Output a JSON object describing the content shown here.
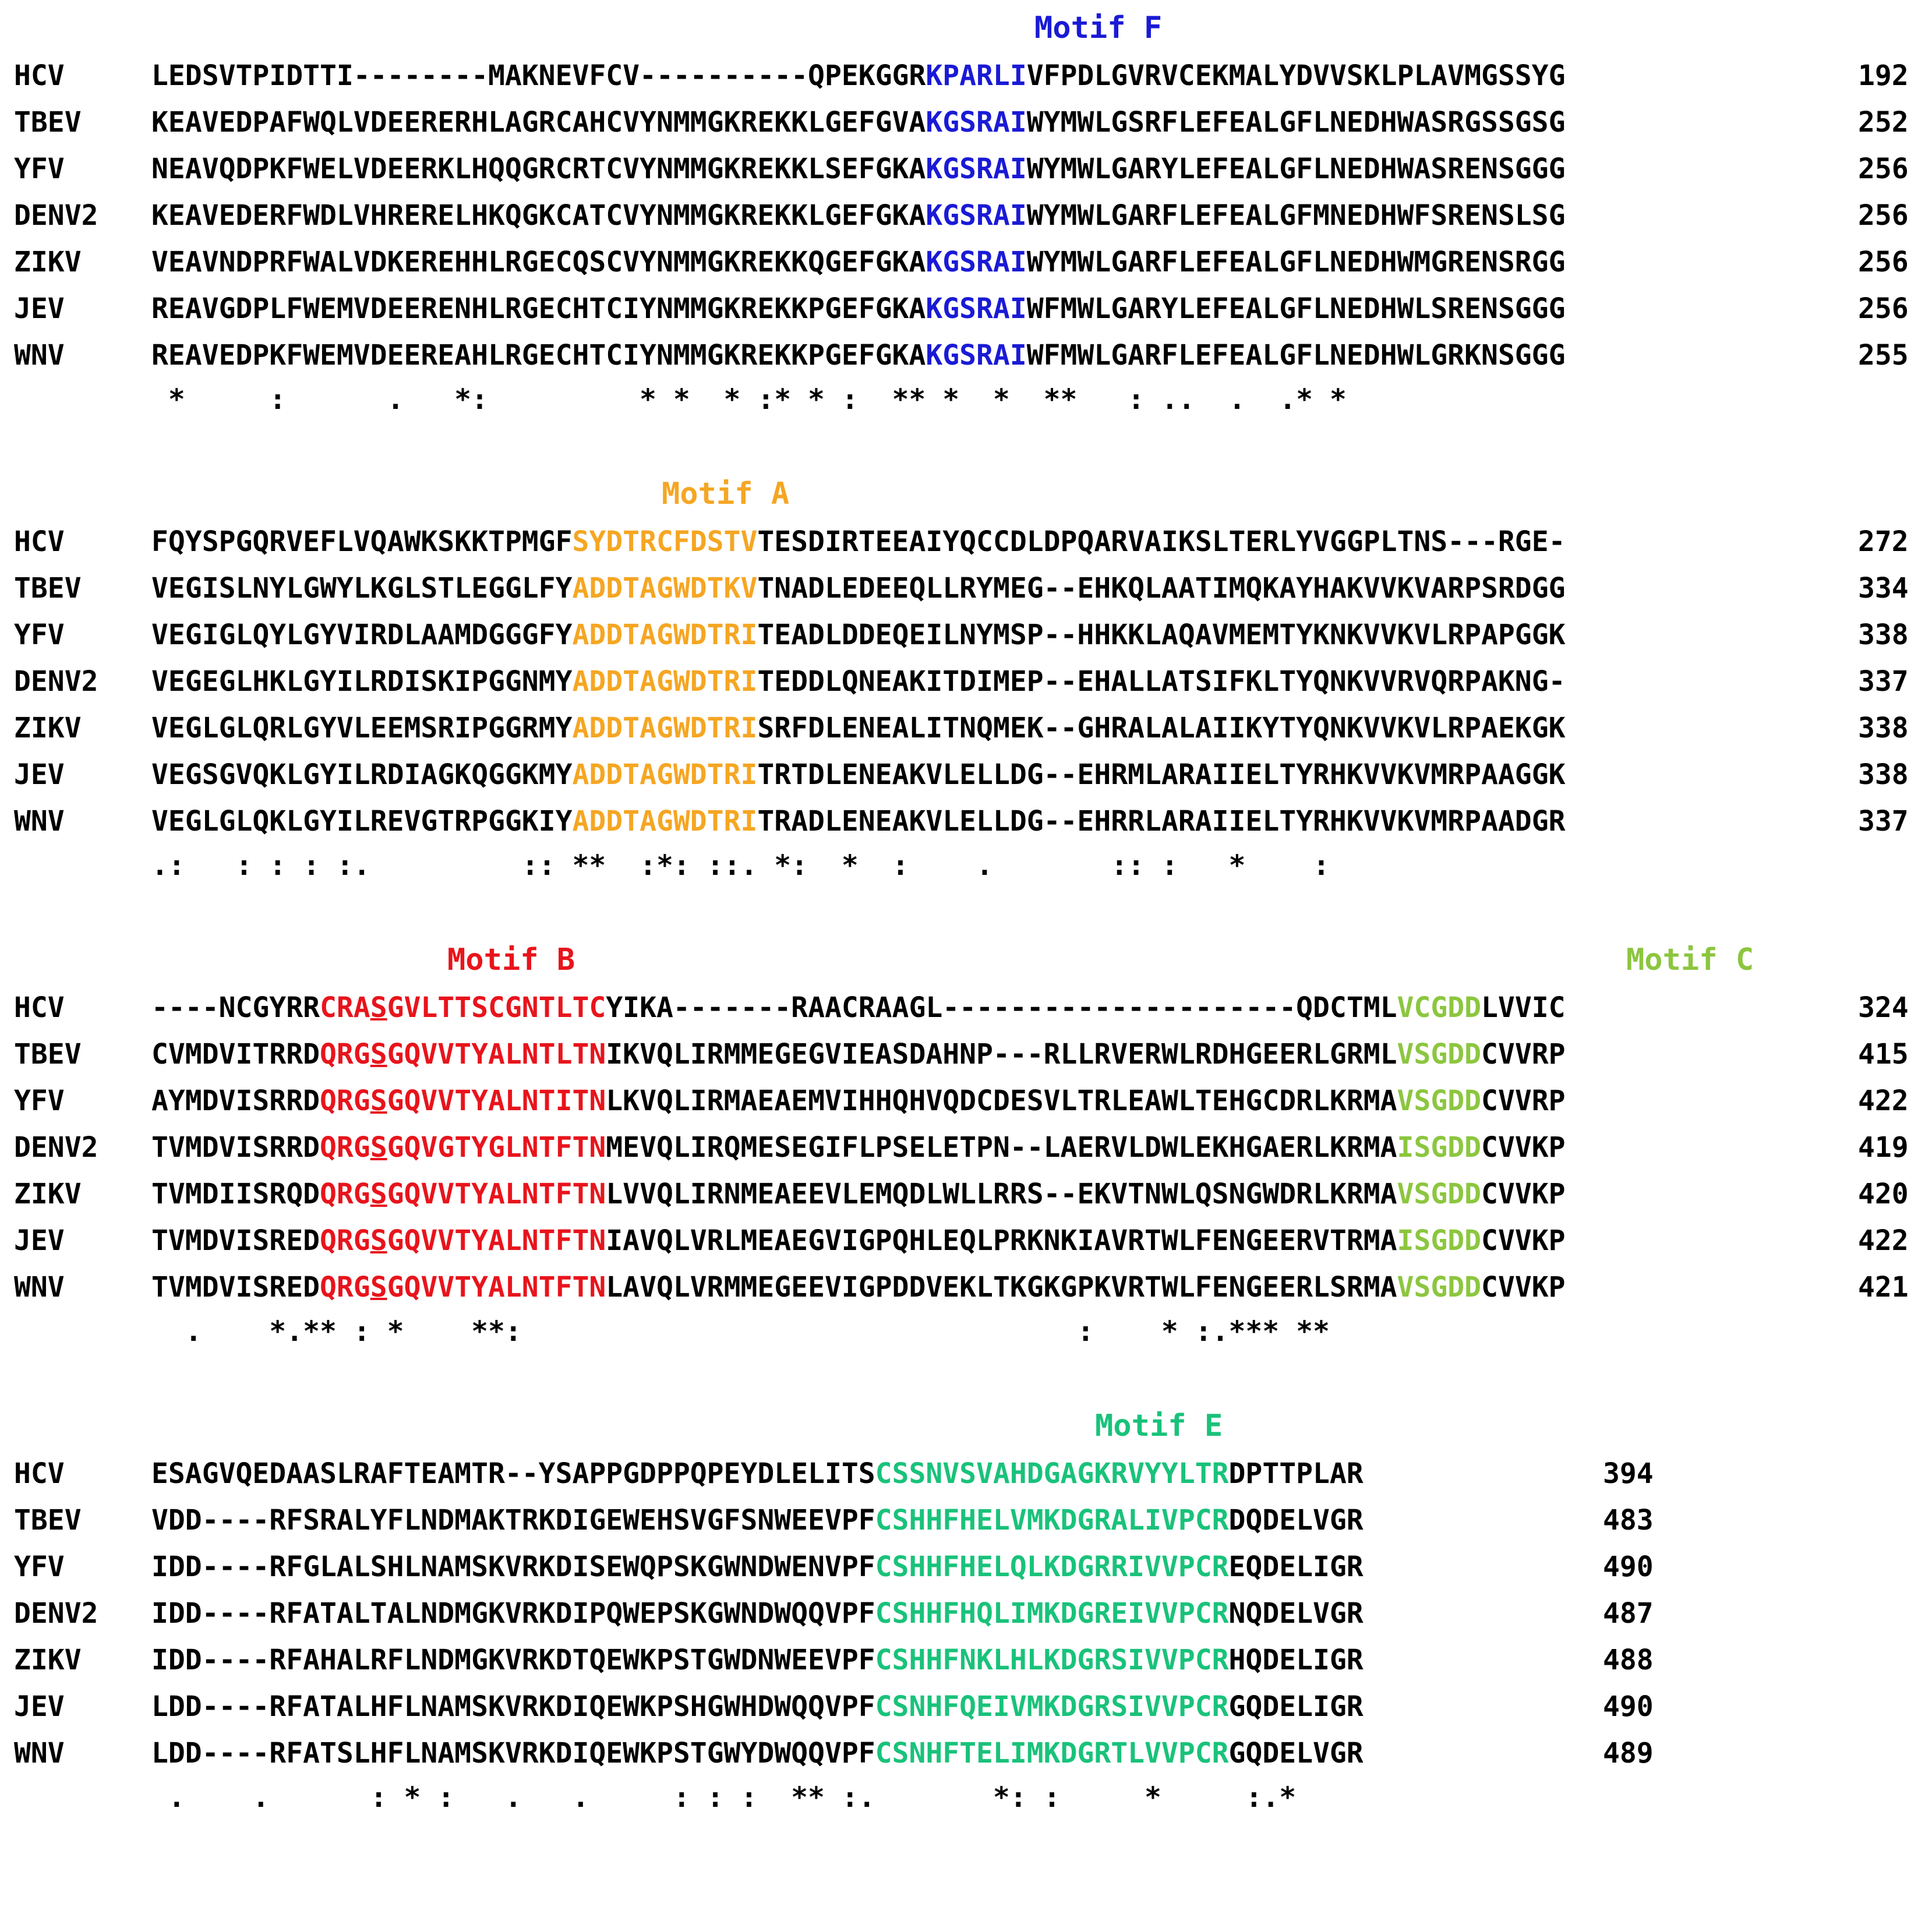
{
  "blocks": [
    {
      "motif": {
        "label": "Motif F",
        "color": "#1a1ad6"
      },
      "rows": [
        {
          "name": "HCV",
          "pre": "LEDSVTPIDTTI--------MAKNEVFCV----------QPEKGGR",
          "hl": "KPARLI",
          "post": "VFPDLGVRVCEKMALYDVVSKLPLAVMGSSYG",
          "num": "192"
        },
        {
          "name": "TBEV",
          "pre": "KEAVEDPAFWQLVDEERERHLAGRCAHCVYNMMGKREKKLGEFGVA",
          "hl": "KGSRAI",
          "post": "WYMWLGSRFLEFEALGFLNEDHWASRGSSGSG",
          "num": "252"
        },
        {
          "name": "YFV",
          "pre": "NEAVQDPKFWELVDEERKLHQQGRCRTCVYNMMGKREKKLSEFGKA",
          "hl": "KGSRAI",
          "post": "WYMWLGARYLEFEALGFLNEDHWASRENSGGG",
          "num": "256"
        },
        {
          "name": "DENV2",
          "pre": "KEAVEDERFWDLVHRERELHKQGKCATCVYNMMGKREKKLGEFGKA",
          "hl": "KGSRAI",
          "post": "WYMWLGARFLEFEALGFMNEDHWFSRENSLSG",
          "num": "256"
        },
        {
          "name": "ZIKV",
          "pre": "VEAVNDPRFWALVDKEREHHLRGECQSCVYNMMGKREKKQGEFGKA",
          "hl": "KGSRAI",
          "post": "WYMWLGARFLEFEALGFLNEDHWMGRENSRGG",
          "num": "256"
        },
        {
          "name": "JEV",
          "pre": "REAVGDPLFWEMVDEERENHLRGECHTCIYNMMGKREKKPGEFGKA",
          "hl": "KGSRAI",
          "post": "WFMWLGARYLEFEALGFLNEDHWLSRENSGGG",
          "num": "256"
        },
        {
          "name": "WNV",
          "pre": "REAVEDPKFWEMVDEEREAHLRGECHTCIYNMMGKREKKPGEFGKA",
          "hl": "KGSRAI",
          "post": "WFMWLGARFLEFEALGFLNEDHWLGRKNSGGG",
          "num": "255"
        }
      ],
      "consensus": " *     :      .   *:         * *  * :* * :  ** *  *  **   : ..  .  .* *"
    },
    {
      "motif": {
        "label": "Motif A",
        "color": "#f5a623"
      },
      "rows": [
        {
          "name": "HCV",
          "pre": "FQYSPGQRVEFLVQAWKSKKTPMGF",
          "hl": "SYDTRCFDSTV",
          "post": "TESDIRTEEAIYQCCDLDPQARVAIKSLTERLYVGGPLTNS---RGE-",
          "num": "272"
        },
        {
          "name": "TBEV",
          "pre": "VEGISLNYLGWYLKGLSTLEGGLFY",
          "hl": "ADDTAGWDTKV",
          "post": "TNADLEDEEQLLRYMEG--EHKQLAATIMQKAYHAKVVKVARPSRDGG",
          "num": "334"
        },
        {
          "name": "YFV",
          "pre": "VEGIGLQYLGYVIRDLAAMDGGGFY",
          "hl": "ADDTAGWDTRI",
          "post": "TEADLDDEQEILNYMSP--HHKKLAQAVMEMTYKNKVVKVLRPAPGGK",
          "num": "338"
        },
        {
          "name": "DENV2",
          "pre": "VEGEGLHKLGYILRDISKIPGGNMY",
          "hl": "ADDTAGWDTRI",
          "post": "TEDDLQNEAKITDIMEP--EHALLATSIFKLTYQNKVVRVQRPAKNG-",
          "num": "337"
        },
        {
          "name": "ZIKV",
          "pre": "VEGLGLQRLGYVLEEMSRIPGGRMY",
          "hl": "ADDTAGWDTRI",
          "post": "SRFDLENEALITNQMEK--GHRALALAIIKYTYQNKVVKVLRPAEKGK",
          "num": "338"
        },
        {
          "name": "JEV",
          "pre": "VEGSGVQKLGYILRDIAGKQGGKMY",
          "hl": "ADDTAGWDTRI",
          "post": "TRTDLENEAKVLELLDG--EHRMLARAIIELTYRHKVVKVMRPAAGGK",
          "num": "338"
        },
        {
          "name": "WNV",
          "pre": "VEGLGLQKLGYILREVGTRPGGKIY",
          "hl": "ADDTAGWDTRI",
          "post": "TRADLENEAKVLELLDG--EHRRLARAIIELTYRHKVVKVMRPAADGR",
          "num": "337"
        }
      ],
      "consensus": ".:   : : : :.         :: **  :*: ::. *:  *  :    .       :: :   *    :"
    },
    {
      "motif": {
        "label": "Motif B",
        "color": "#e8141c"
      },
      "motif2": {
        "label": "Motif C",
        "color": "#8cc63f"
      },
      "rows": [
        {
          "name": "HCV",
          "pre": "----NCGYRR",
          "hlb1": "CRA",
          "hlbs": "S",
          "hlb2": "GVLTTSCGNTLTC",
          "mid": "YIKA-------RAACRAAGL---------------------QDCTML",
          "hlc": "VCGDD",
          "post": "LVVIC",
          "num": "324"
        },
        {
          "name": "TBEV",
          "pre": "CVMDVITRRD",
          "hlb1": "QRG",
          "hlbs": "S",
          "hlb2": "GQVVTYALNTLTN",
          "mid": "IKVQLIRMMEGEGVIEASDAHNP---RLLRVERWLRDHGEERLGRML",
          "hlc": "VSGDD",
          "post": "CVVRP",
          "num": "415"
        },
        {
          "name": "YFV",
          "pre": "AYMDVISRRD",
          "hlb1": "QRG",
          "hlbs": "S",
          "hlb2": "GQVVTYALNTITN",
          "mid": "LKVQLIRMAEAEMVIHHQHVQDCDESVLTRLEAWLTEHGCDRLKRMA",
          "hlc": "VSGDD",
          "post": "CVVRP",
          "num": "422"
        },
        {
          "name": "DENV2",
          "pre": "TVMDVISRRD",
          "hlb1": "QRG",
          "hlbs": "S",
          "hlb2": "GQVGTYGLNTFTN",
          "mid": "MEVQLIRQMESEGIFLPSELETPN--LAERVLDWLEKHGAERLKRMA",
          "hlc": "ISGDD",
          "post": "CVVKP",
          "num": "419"
        },
        {
          "name": "ZIKV",
          "pre": "TVMDIISRQD",
          "hlb1": "QRG",
          "hlbs": "S",
          "hlb2": "GQVVTYALNTFTN",
          "mid": "LVVQLIRNMEAEEVLEMQDLWLLRRS--EKVTNWLQSNGWDRLKRMA",
          "hlc": "VSGDD",
          "post": "CVVKP",
          "num": "420"
        },
        {
          "name": "JEV",
          "pre": "TVMDVISRED",
          "hlb1": "QRG",
          "hlbs": "S",
          "hlb2": "GQVVTYALNTFTN",
          "mid": "IAVQLVRLMEAEGVIGPQHLEQLPRKNKIAVRTWLFENGEERVTRMA",
          "hlc": "ISGDD",
          "post": "CVVKP",
          "num": "422"
        },
        {
          "name": "WNV",
          "pre": "TVMDVISRED",
          "hlb1": "QRG",
          "hlbs": "S",
          "hlb2": "GQVVTYALNTFTN",
          "mid": "LAVQLVRMMEGEEVIGPDDVEKLTKGKGPKVRTWLFENGEERLSRMA",
          "hlc": "VSGDD",
          "post": "CVVKP",
          "num": "421"
        }
      ],
      "consensus": "  .    *.** : *    **:                                 :    * :.*** **"
    },
    {
      "motif": {
        "label": "Motif E",
        "color": "#19c27a"
      },
      "rows": [
        {
          "name": "HCV",
          "pre": "ESAGVQEDAASLRAFTEAMTR--YSAPPGDPPQPEYDLELITS",
          "hl": "CSSNVSVAHDGAGKRVYYLTR",
          "post": "DPTTPLAR",
          "num": "394"
        },
        {
          "name": "TBEV",
          "pre": "VDD----RFSRALYFLNDMAKTRKDIGEWEHSVGFSNWEEVPF",
          "hl": "CSHHFHELVMKDGRALIVPCR",
          "post": "DQDELVGR",
          "num": "483"
        },
        {
          "name": "YFV",
          "pre": "IDD----RFGLALSHLNAMSKVRKDISEWQPSKGWNDWENVPF",
          "hl": "CSHHFHELQLKDGRRIVVPCR",
          "post": "EQDELIGR",
          "num": "490"
        },
        {
          "name": "DENV2",
          "pre": "IDD----RFATALTALNDMGKVRKDIPQWEPSKGWNDWQQVPF",
          "hl": "CSHHFHQLIMKDGREIVVPCR",
          "post": "NQDELVGR",
          "num": "487"
        },
        {
          "name": "ZIKV",
          "pre": "IDD----RFAHALRFLNDMGKVRKDTQEWKPSTGWDNWEEVPF",
          "hl": "CSHHFNKLHLKDGRSIVVPCR",
          "post": "HQDELIGR",
          "num": "488"
        },
        {
          "name": "JEV",
          "pre": "LDD----RFATALHFLNAMSKVRKDIQEWKPSHGWHDWQQVPF",
          "hl": "CSNHFQEIVMKDGRSIVVPCR",
          "post": "GQDELIGR",
          "num": "490"
        },
        {
          "name": "WNV",
          "pre": "LDD----RFATSLHFLNAMSKVRKDIQEWKPSTGWYDWQQVPF",
          "hl": "CSNHFTELIMKDGRTLVVPCR",
          "post": "GQDELVGR",
          "num": "489"
        }
      ],
      "consensus": " .    .      : * :   .   .     : : :  ** :.       *: :     *     :.*"
    }
  ]
}
